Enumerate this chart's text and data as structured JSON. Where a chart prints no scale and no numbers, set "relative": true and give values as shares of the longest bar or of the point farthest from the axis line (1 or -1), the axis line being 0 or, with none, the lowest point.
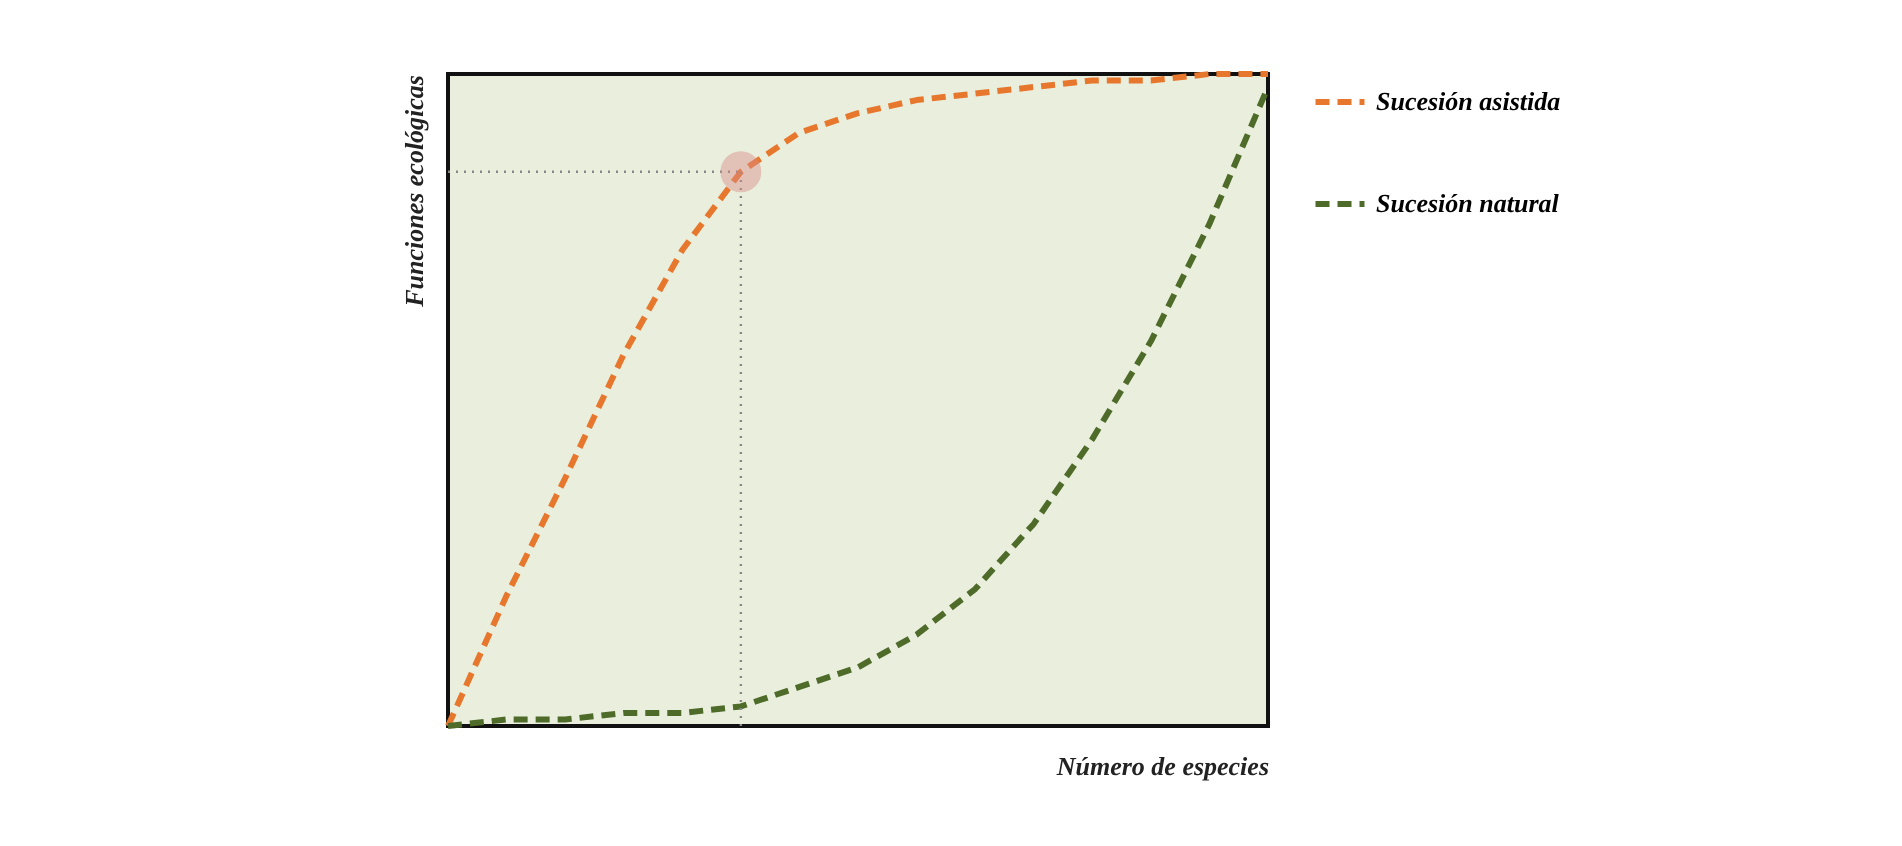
{
  "chart_data": {
    "type": "line",
    "relative": true,
    "xlabel": "Número de especies",
    "ylabel": "Funciones ecológicas",
    "categories": [
      null,
      null,
      null,
      null,
      null,
      null,
      null,
      null,
      null,
      null,
      null,
      null,
      null,
      null,
      null
    ],
    "series": [
      {
        "name": "Sucesión asistida",
        "color": "#e8772e",
        "line_style": "dashed",
        "values": [
          0,
          0.2,
          0.38,
          0.57,
          0.73,
          0.85,
          0.91,
          0.94,
          0.96,
          0.97,
          0.98,
          0.99,
          0.99,
          1.0,
          1.0
        ]
      },
      {
        "name": "Sucesión natural",
        "color": "#4f6b2a",
        "line_style": "dashed",
        "values": [
          0,
          0.01,
          0.01,
          0.02,
          0.02,
          0.03,
          0.06,
          0.09,
          0.14,
          0.21,
          0.31,
          0.44,
          0.59,
          0.77,
          0.98
        ]
      }
    ],
    "ref_lines": [
      {
        "axis": "y",
        "value": 0.85,
        "color": "#888888",
        "line_style": "dotted"
      }
    ],
    "legend": "right",
    "marker": "none"
  }
}
